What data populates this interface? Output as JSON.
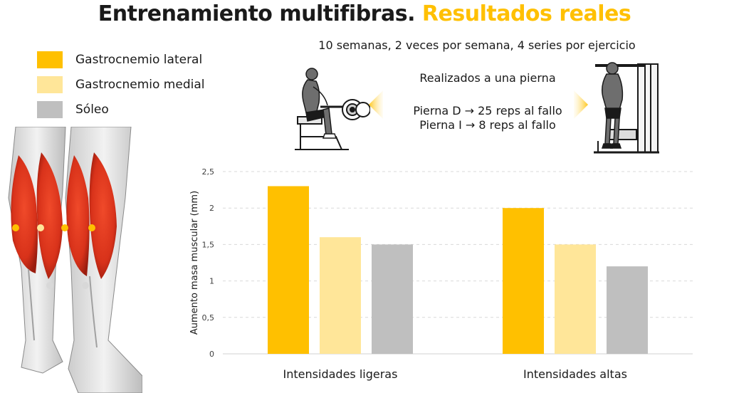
{
  "header": {
    "title_main": "Entrenamiento multifibras.",
    "title_accent": "Resultados reales",
    "accent_color": "#FFC000",
    "subtitle": "10 semanas, 2 veces por semana, 4 series por ejercicio"
  },
  "protocol": {
    "line1": "Realizados a una pierna",
    "line2": "Pierna D → 25 reps al fallo",
    "line3": "Pierna I → 8 reps al fallo"
  },
  "legend": [
    {
      "label": "Gastrocnemio lateral",
      "color": "#FFC000"
    },
    {
      "label": "Gastrocnemio medial",
      "color": "#FFE699"
    },
    {
      "label": "Sóleo",
      "color": "#BFBFBF"
    }
  ],
  "chart_data": {
    "type": "bar",
    "categories": [
      "Intensidades ligeras",
      "Intensidades altas"
    ],
    "series": [
      {
        "name": "Gastrocnemio lateral",
        "color": "#FFC000",
        "values": [
          2.3,
          2.0
        ]
      },
      {
        "name": "Gastrocnemio medial",
        "color": "#FFE699",
        "values": [
          1.6,
          1.5
        ]
      },
      {
        "name": "Sóleo",
        "color": "#BFBFBF",
        "values": [
          1.5,
          1.2
        ]
      }
    ],
    "ylabel": "Aumento masa muscular (mm)",
    "ylim": [
      0,
      2.5
    ],
    "yticks": [
      "0",
      "0,5",
      "1",
      "1,5",
      "2",
      "2,5"
    ],
    "grid": true,
    "legend_position": "top-left"
  }
}
